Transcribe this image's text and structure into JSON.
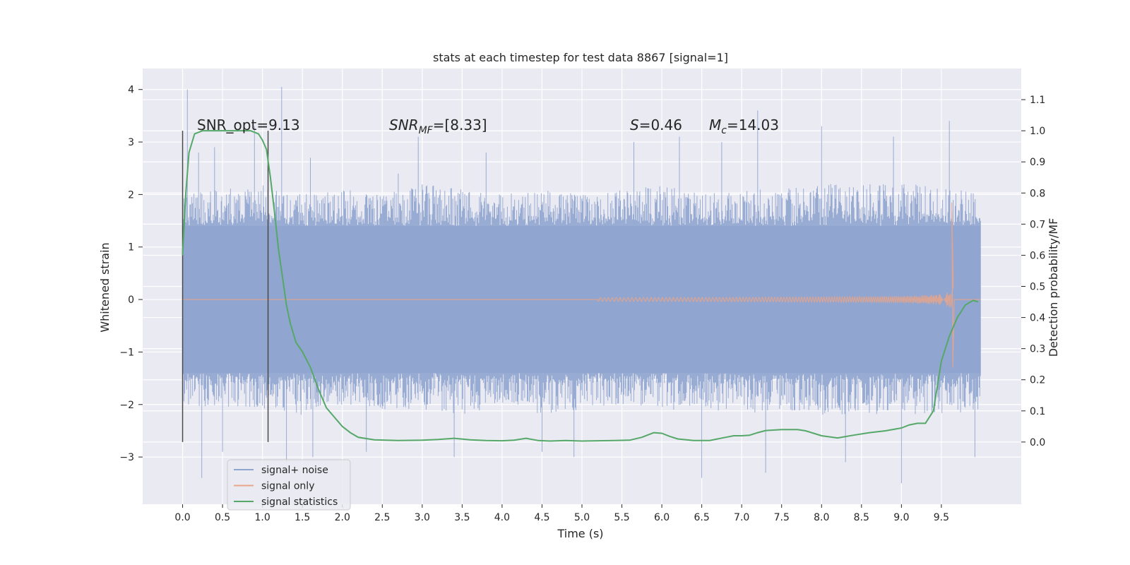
{
  "chart_data": {
    "type": "line",
    "title": "stats at each timestep for test data 8867 [signal=1]",
    "xlabel": "Time (s)",
    "ylabel_left": "Whitened strain",
    "ylabel_right": "Detection probability/MF",
    "xlim": [
      -0.5,
      10.5
    ],
    "ylim_left": [
      -3.9,
      4.4
    ],
    "ylim_right": [
      -0.2,
      1.2
    ],
    "x_ticks": [
      0.0,
      0.5,
      1.0,
      1.5,
      2.0,
      2.5,
      3.0,
      3.5,
      4.0,
      4.5,
      5.0,
      5.5,
      6.0,
      6.5,
      7.0,
      7.5,
      8.0,
      8.5,
      9.0,
      9.5
    ],
    "x_tick_labels": [
      "0.0",
      "0.5",
      "1.0",
      "1.5",
      "2.0",
      "2.5",
      "3.0",
      "3.5",
      "4.0",
      "4.5",
      "5.0",
      "5.5",
      "6.0",
      "6.5",
      "7.0",
      "7.5",
      "8.0",
      "8.5",
      "9.0",
      "9.5"
    ],
    "y_left_ticks": [
      -3,
      -2,
      -1,
      0,
      1,
      2,
      3,
      4
    ],
    "y_left_tick_labels": [
      "−3",
      "−2",
      "−1",
      "0",
      "1",
      "2",
      "3",
      "4"
    ],
    "y_right_ticks": [
      0.0,
      0.1,
      0.2,
      0.3,
      0.4,
      0.5,
      0.6,
      0.7,
      0.8,
      0.9,
      1.0,
      1.1
    ],
    "y_right_tick_labels": [
      "0.0",
      "0.1",
      "0.2",
      "0.3",
      "0.4",
      "0.5",
      "0.6",
      "0.7",
      "0.8",
      "0.9",
      "1.0",
      "1.1"
    ],
    "grid": true,
    "legend_position": "lower-left",
    "annotations": {
      "snr_opt": "SNR_opt=9.13",
      "snr_mf_main": "SNR",
      "snr_mf_sub": "MF",
      "snr_mf_rest": "=[8.33]",
      "s_main": "S",
      "s_rest": "=0.46",
      "mc_main": "M",
      "mc_sub": "c",
      "mc_rest": "=14.03"
    },
    "vertical_markers_x": [
      0.0,
      1.07
    ],
    "series": [
      {
        "name": "signal+ noise",
        "axis": "left",
        "color": "#8fa4cf",
        "envelope_x": [
          0.0,
          0.5,
          1.0,
          1.5,
          2.0,
          2.5,
          3.0,
          3.5,
          4.0,
          4.5,
          5.0,
          5.5,
          6.0,
          6.5,
          7.0,
          7.5,
          8.0,
          8.5,
          9.0,
          9.5,
          9.99
        ],
        "envelope_upper": [
          2.0,
          2.1,
          2.2,
          2.0,
          2.1,
          2.0,
          2.2,
          2.1,
          2.0,
          2.1,
          2.0,
          2.1,
          2.2,
          2.0,
          2.1,
          2.1,
          2.2,
          2.2,
          2.2,
          2.2,
          2.0
        ],
        "envelope_lower": [
          -2.0,
          -2.1,
          -2.1,
          -2.2,
          -2.0,
          -2.1,
          -2.1,
          -2.2,
          -2.0,
          -2.2,
          -2.1,
          -2.0,
          -2.1,
          -2.1,
          -2.2,
          -2.1,
          -2.2,
          -2.2,
          -2.2,
          -2.2,
          -2.1
        ],
        "peaks_x": [
          0.06,
          0.2,
          0.4,
          0.9,
          1.24,
          1.6,
          2.7,
          2.95,
          3.8,
          5.65,
          6.22,
          6.75,
          7.2,
          8.0,
          8.9,
          9.6
        ],
        "peaks_y": [
          4.0,
          2.8,
          2.9,
          3.3,
          4.05,
          2.7,
          2.4,
          3.1,
          2.8,
          3.0,
          3.1,
          3.0,
          3.6,
          3.3,
          3.1,
          3.4
        ],
        "troughs_x": [
          0.24,
          0.5,
          1.3,
          1.63,
          2.3,
          3.4,
          4.5,
          4.9,
          6.5,
          7.3,
          8.3,
          9.0,
          9.92
        ],
        "troughs_y": [
          -3.4,
          -2.9,
          -3.1,
          -3.0,
          -2.9,
          -3.0,
          -2.9,
          -3.0,
          -3.4,
          -3.3,
          -3.1,
          -3.5,
          -3.0
        ]
      },
      {
        "name": "signal only",
        "axis": "left",
        "color": "#e8a58a",
        "chirp_start_x": 5.2,
        "chirp_end_x": 9.65,
        "peak_x": 9.63,
        "peak_max": 1.85,
        "peak_min": -1.3,
        "end_x": 9.99
      },
      {
        "name": "signal statistics",
        "axis": "right",
        "color": "#55a868",
        "x": [
          0.0,
          0.04,
          0.08,
          0.15,
          0.25,
          0.4,
          0.55,
          0.7,
          0.85,
          0.95,
          1.0,
          1.05,
          1.1,
          1.15,
          1.2,
          1.3,
          1.35,
          1.42,
          1.5,
          1.6,
          1.7,
          1.8,
          1.9,
          2.0,
          2.1,
          2.2,
          2.4,
          2.7,
          3.0,
          3.2,
          3.4,
          3.6,
          3.8,
          4.0,
          4.15,
          4.3,
          4.45,
          4.6,
          4.8,
          5.0,
          5.2,
          5.4,
          5.6,
          5.75,
          5.9,
          6.0,
          6.1,
          6.2,
          6.4,
          6.6,
          6.8,
          6.9,
          7.0,
          7.1,
          7.2,
          7.3,
          7.5,
          7.7,
          7.8,
          7.9,
          8.0,
          8.2,
          8.4,
          8.6,
          8.8,
          9.0,
          9.1,
          9.2,
          9.3,
          9.4,
          9.5,
          9.6,
          9.7,
          9.8,
          9.9,
          9.96
        ],
        "y": [
          0.6,
          0.8,
          0.93,
          0.99,
          1.0,
          1.0,
          1.0,
          1.0,
          1.0,
          0.99,
          0.97,
          0.94,
          0.85,
          0.74,
          0.62,
          0.44,
          0.38,
          0.32,
          0.29,
          0.24,
          0.17,
          0.11,
          0.08,
          0.05,
          0.03,
          0.015,
          0.007,
          0.005,
          0.006,
          0.008,
          0.012,
          0.007,
          0.005,
          0.004,
          0.006,
          0.012,
          0.005,
          0.003,
          0.005,
          0.003,
          0.004,
          0.005,
          0.006,
          0.015,
          0.03,
          0.028,
          0.018,
          0.01,
          0.005,
          0.005,
          0.015,
          0.02,
          0.02,
          0.022,
          0.03,
          0.037,
          0.04,
          0.04,
          0.036,
          0.028,
          0.02,
          0.013,
          0.022,
          0.03,
          0.036,
          0.045,
          0.055,
          0.06,
          0.06,
          0.1,
          0.26,
          0.34,
          0.4,
          0.44,
          0.455,
          0.45
        ]
      }
    ]
  }
}
